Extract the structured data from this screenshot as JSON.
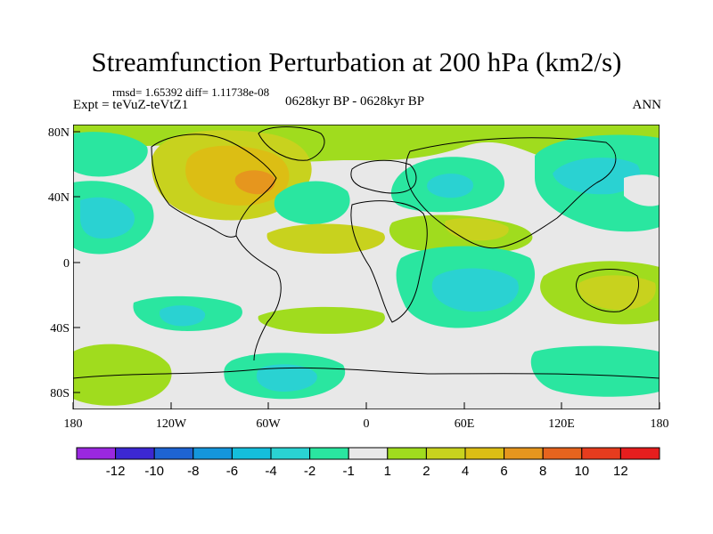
{
  "title": "Streamfunction Perturbation at 200 hPa (km2/s)",
  "stats": "rmsd= 1.65392 diff= 1.11738e-08",
  "experiment": "Expt = teVuZ-teVtZ1",
  "period": "0628kyr BP - 0628kyr BP",
  "season": "ANN",
  "map": {
    "lat_labels": [
      "80N",
      "40N",
      "0",
      "40S",
      "80S"
    ],
    "lon_labels": [
      "180",
      "120W",
      "60W",
      "0",
      "60E",
      "120E",
      "180"
    ],
    "background_color": "#e8e8e8"
  },
  "colorbar": {
    "labels": [
      "-12",
      "-10",
      "-8",
      "-6",
      "-4",
      "-2",
      "-1",
      "1",
      "2",
      "4",
      "6",
      "8",
      "10",
      "12"
    ],
    "colors": [
      "#9a28e0",
      "#3c28d2",
      "#1e64d2",
      "#1496dc",
      "#14bedc",
      "#2ad2d2",
      "#2ae6a0",
      "#e8e8e8",
      "#a0dc1e",
      "#c8d21e",
      "#dcbe14",
      "#e6961e",
      "#e6641e",
      "#e63c1e",
      "#e61e1e"
    ]
  }
}
